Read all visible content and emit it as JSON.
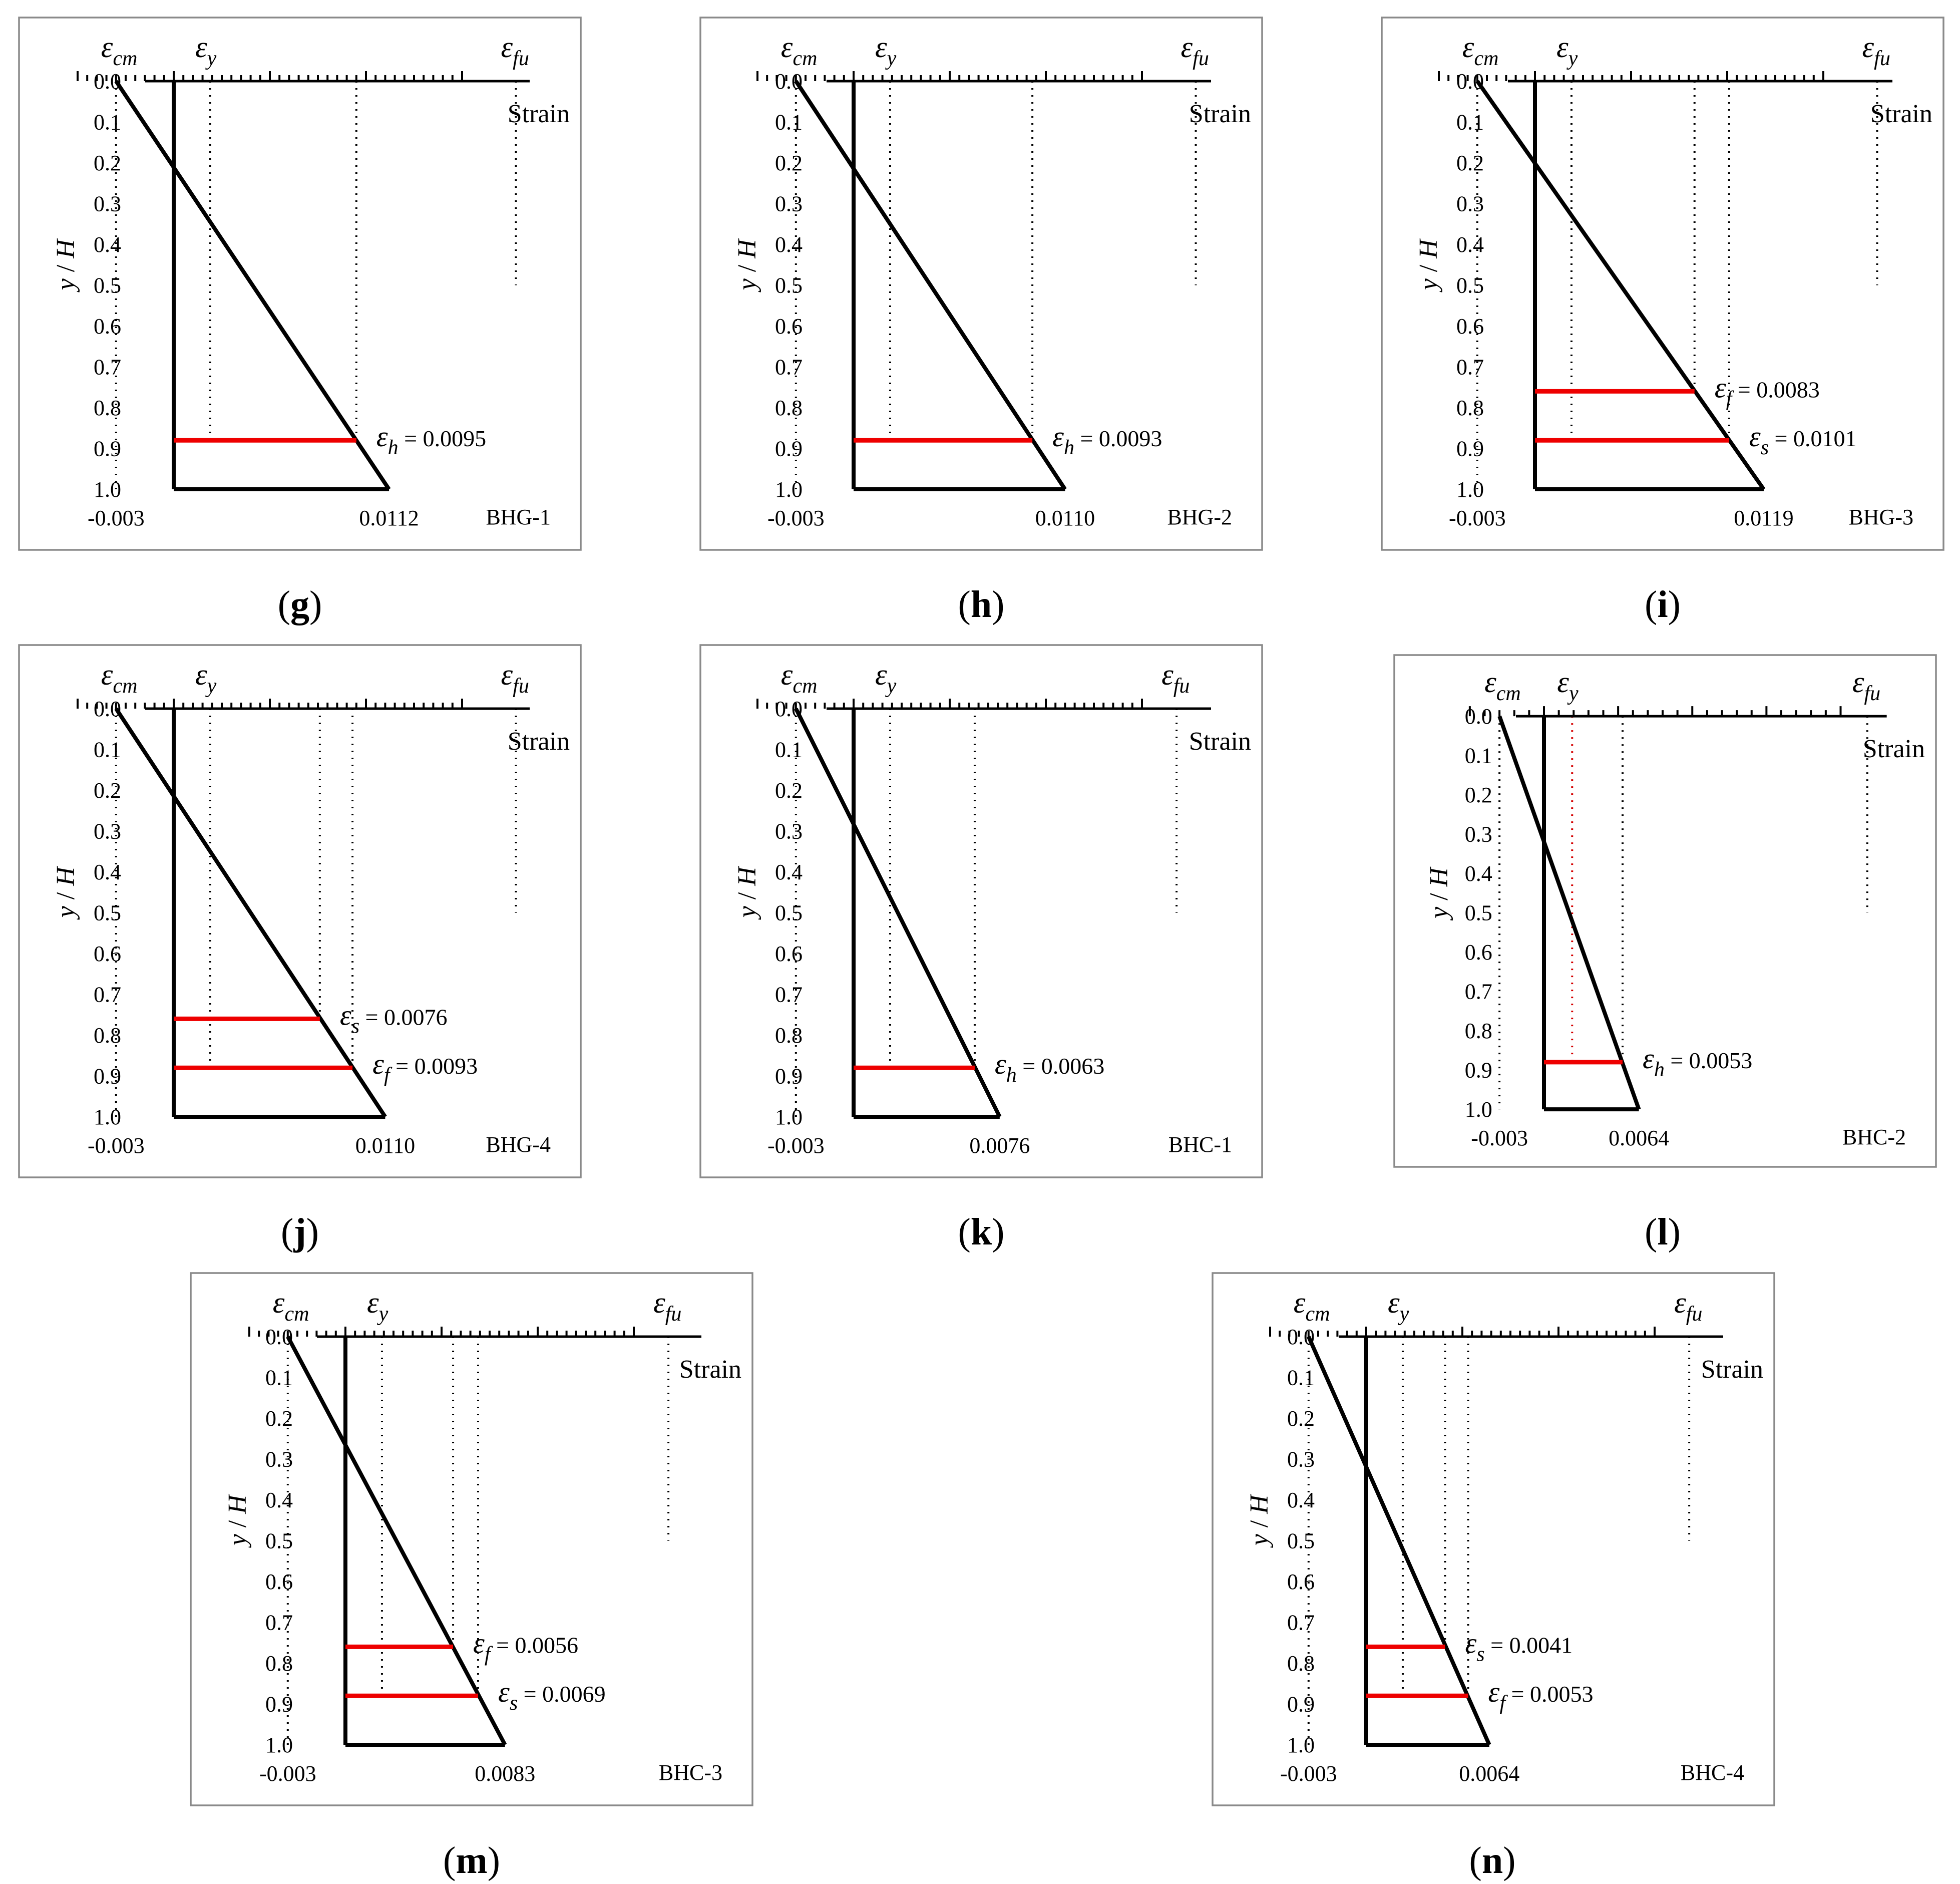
{
  "figure": {
    "colors": {
      "frame": "#8a8a8a",
      "profile": "#000000",
      "highlight": "#ee0000"
    },
    "y_label_main": "y",
    "y_label_sep": " / ",
    "y_label_var": "H",
    "x_label": "Strain",
    "y_ticks": [
      "0.0",
      "0.1",
      "0.2",
      "0.3",
      "0.4",
      "0.5",
      "0.6",
      "0.7",
      "0.8",
      "0.9",
      "1.0"
    ]
  },
  "chart_data": [
    {
      "type": "line",
      "id": "g",
      "specimen": "BHG-1",
      "caption": "g",
      "ylim": [
        0,
        1
      ],
      "xlim": [
        -0.005,
        0.015
      ],
      "profile": [
        {
          "strain": -0.003,
          "y": 0.0
        },
        {
          "strain": 0.0112,
          "y": 1.0
        }
      ],
      "reference_lines": [
        {
          "strain": -0.003,
          "y_to": 1.0,
          "style": "dotted"
        },
        {
          "strain": 0.0019,
          "y_to": 0.88,
          "style": "dotted"
        },
        {
          "strain": 0.0095,
          "y_to": 0.88,
          "style": "dotted"
        },
        {
          "strain": 0.0178,
          "y_to": 0.5,
          "style": "dotted"
        }
      ],
      "highlights": [
        {
          "y": 0.88,
          "strain": 0.0095,
          "symbol": "ε",
          "sub": "h",
          "text": " = 0.0095"
        }
      ],
      "bottom_labels": [
        {
          "strain": -0.003,
          "text": "-0.003"
        },
        {
          "strain": 0.0112,
          "text": "0.0112"
        }
      ],
      "top_symbols": [
        {
          "strain": -0.003,
          "symbol": "ε",
          "sub": "cm"
        },
        {
          "strain": 0.0019,
          "symbol": "ε",
          "sub": "y"
        },
        {
          "strain": 0.0178,
          "symbol": "ε",
          "sub": "fu"
        }
      ]
    },
    {
      "type": "line",
      "id": "h",
      "specimen": "BHG-2",
      "caption": "h",
      "ylim": [
        0,
        1
      ],
      "xlim": [
        -0.005,
        0.015
      ],
      "profile": [
        {
          "strain": -0.003,
          "y": 0.0
        },
        {
          "strain": 0.011,
          "y": 1.0
        }
      ],
      "reference_lines": [
        {
          "strain": -0.003,
          "y_to": 1.0,
          "style": "dotted"
        },
        {
          "strain": 0.0019,
          "y_to": 0.88,
          "style": "dotted"
        },
        {
          "strain": 0.0093,
          "y_to": 0.88,
          "style": "dotted"
        },
        {
          "strain": 0.0178,
          "y_to": 0.5,
          "style": "dotted"
        }
      ],
      "highlights": [
        {
          "y": 0.88,
          "strain": 0.0093,
          "symbol": "ε",
          "sub": "h",
          "text": " = 0.0093"
        }
      ],
      "bottom_labels": [
        {
          "strain": -0.003,
          "text": "-0.003"
        },
        {
          "strain": 0.011,
          "text": "0.0110"
        }
      ],
      "top_symbols": [
        {
          "strain": -0.003,
          "symbol": "ε",
          "sub": "cm"
        },
        {
          "strain": 0.0019,
          "symbol": "ε",
          "sub": "y"
        },
        {
          "strain": 0.0178,
          "symbol": "ε",
          "sub": "fu"
        }
      ]
    },
    {
      "type": "line",
      "id": "i",
      "specimen": "BHG-3",
      "caption": "i",
      "ylim": [
        0,
        1
      ],
      "xlim": [
        -0.005,
        0.015
      ],
      "profile": [
        {
          "strain": -0.003,
          "y": 0.0
        },
        {
          "strain": 0.0119,
          "y": 1.0
        }
      ],
      "reference_lines": [
        {
          "strain": -0.003,
          "y_to": 1.0,
          "style": "dotted"
        },
        {
          "strain": 0.0019,
          "y_to": 0.88,
          "style": "dotted"
        },
        {
          "strain": 0.0083,
          "y_to": 0.76,
          "style": "dotted"
        },
        {
          "strain": 0.0101,
          "y_to": 0.88,
          "style": "dotted"
        },
        {
          "strain": 0.0178,
          "y_to": 0.5,
          "style": "dotted"
        }
      ],
      "highlights": [
        {
          "y": 0.76,
          "strain": 0.0083,
          "symbol": "ε",
          "sub": "f",
          "text": " = 0.0083"
        },
        {
          "y": 0.88,
          "strain": 0.0101,
          "symbol": "ε",
          "sub": "s",
          "text": " = 0.0101"
        }
      ],
      "bottom_labels": [
        {
          "strain": -0.003,
          "text": "-0.003"
        },
        {
          "strain": 0.0119,
          "text": "0.0119"
        }
      ],
      "top_symbols": [
        {
          "strain": -0.003,
          "symbol": "ε",
          "sub": "cm"
        },
        {
          "strain": 0.0019,
          "symbol": "ε",
          "sub": "y"
        },
        {
          "strain": 0.0178,
          "symbol": "ε",
          "sub": "fu"
        }
      ]
    },
    {
      "type": "line",
      "id": "j",
      "specimen": "BHG-4",
      "caption": "j",
      "ylim": [
        0,
        1
      ],
      "xlim": [
        -0.005,
        0.015
      ],
      "profile": [
        {
          "strain": -0.003,
          "y": 0.0
        },
        {
          "strain": 0.011,
          "y": 1.0
        }
      ],
      "reference_lines": [
        {
          "strain": -0.003,
          "y_to": 1.0,
          "style": "dotted"
        },
        {
          "strain": 0.0019,
          "y_to": 0.88,
          "style": "dotted"
        },
        {
          "strain": 0.0076,
          "y_to": 0.76,
          "style": "dotted"
        },
        {
          "strain": 0.0093,
          "y_to": 0.88,
          "style": "dotted"
        },
        {
          "strain": 0.0178,
          "y_to": 0.5,
          "style": "dotted"
        }
      ],
      "highlights": [
        {
          "y": 0.76,
          "strain": 0.0076,
          "symbol": "ε",
          "sub": "s",
          "text": " = 0.0076"
        },
        {
          "y": 0.88,
          "strain": 0.0093,
          "symbol": "ε",
          "sub": "f",
          "text": " = 0.0093"
        }
      ],
      "bottom_labels": [
        {
          "strain": -0.003,
          "text": "-0.003"
        },
        {
          "strain": 0.011,
          "text": "0.0110"
        }
      ],
      "top_symbols": [
        {
          "strain": -0.003,
          "symbol": "ε",
          "sub": "cm"
        },
        {
          "strain": 0.0019,
          "symbol": "ε",
          "sub": "y"
        },
        {
          "strain": 0.0178,
          "symbol": "ε",
          "sub": "fu"
        }
      ]
    },
    {
      "type": "line",
      "id": "k",
      "specimen": "BHC-1",
      "caption": "k",
      "ylim": [
        0,
        1
      ],
      "xlim": [
        -0.005,
        0.015
      ],
      "profile": [
        {
          "strain": -0.003,
          "y": 0.0
        },
        {
          "strain": 0.0076,
          "y": 1.0
        }
      ],
      "reference_lines": [
        {
          "strain": -0.003,
          "y_to": 1.0,
          "style": "dotted"
        },
        {
          "strain": 0.0019,
          "y_to": 0.88,
          "style": "dotted"
        },
        {
          "strain": 0.0063,
          "y_to": 0.88,
          "style": "dotted"
        },
        {
          "strain": 0.0168,
          "y_to": 0.5,
          "style": "dotted"
        }
      ],
      "highlights": [
        {
          "y": 0.88,
          "strain": 0.0063,
          "symbol": "ε",
          "sub": "h",
          "text": " = 0.0063"
        }
      ],
      "bottom_labels": [
        {
          "strain": -0.003,
          "text": "-0.003"
        },
        {
          "strain": 0.0076,
          "text": "0.0076"
        }
      ],
      "top_symbols": [
        {
          "strain": -0.003,
          "symbol": "ε",
          "sub": "cm"
        },
        {
          "strain": 0.0019,
          "symbol": "ε",
          "sub": "y"
        },
        {
          "strain": 0.0168,
          "symbol": "ε",
          "sub": "fu"
        }
      ]
    },
    {
      "type": "line",
      "id": "l",
      "specimen": "BHC-2",
      "caption": "l",
      "ylim": [
        0,
        1
      ],
      "xlim": [
        -0.005,
        0.02
      ],
      "profile": [
        {
          "strain": -0.003,
          "y": 0.0
        },
        {
          "strain": 0.0064,
          "y": 1.0
        }
      ],
      "reference_lines": [
        {
          "strain": -0.003,
          "y_to": 1.0,
          "style": "dotted"
        },
        {
          "strain": 0.0019,
          "y_to": 0.88,
          "style": "dotted-red"
        },
        {
          "strain": 0.0053,
          "y_to": 0.88,
          "style": "dotted"
        },
        {
          "strain": 0.0218,
          "y_to": 0.5,
          "style": "dotted"
        }
      ],
      "highlights": [
        {
          "y": 0.88,
          "strain": 0.0053,
          "symbol": "ε",
          "sub": "h",
          "text": " = 0.0053"
        }
      ],
      "bottom_labels": [
        {
          "strain": -0.003,
          "text": "-0.003"
        },
        {
          "strain": 0.0064,
          "text": "0.0064"
        }
      ],
      "top_symbols": [
        {
          "strain": -0.003,
          "symbol": "ε",
          "sub": "cm"
        },
        {
          "strain": 0.0019,
          "symbol": "ε",
          "sub": "y"
        },
        {
          "strain": 0.0218,
          "symbol": "ε",
          "sub": "fu"
        }
      ]
    },
    {
      "type": "line",
      "id": "m",
      "specimen": "BHC-3",
      "caption": "m",
      "ylim": [
        0,
        1
      ],
      "xlim": [
        -0.005,
        0.015
      ],
      "profile": [
        {
          "strain": -0.003,
          "y": 0.0
        },
        {
          "strain": 0.0083,
          "y": 1.0
        }
      ],
      "reference_lines": [
        {
          "strain": -0.003,
          "y_to": 1.0,
          "style": "dotted"
        },
        {
          "strain": 0.0019,
          "y_to": 0.88,
          "style": "dotted"
        },
        {
          "strain": 0.0056,
          "y_to": 0.76,
          "style": "dotted"
        },
        {
          "strain": 0.0069,
          "y_to": 0.88,
          "style": "dotted"
        },
        {
          "strain": 0.0168,
          "y_to": 0.5,
          "style": "dotted"
        }
      ],
      "highlights": [
        {
          "y": 0.76,
          "strain": 0.0056,
          "symbol": "ε",
          "sub": "f",
          "text": " = 0.0056"
        },
        {
          "y": 0.88,
          "strain": 0.0069,
          "symbol": "ε",
          "sub": "s",
          "text": " = 0.0069"
        }
      ],
      "bottom_labels": [
        {
          "strain": -0.003,
          "text": "-0.003"
        },
        {
          "strain": 0.0083,
          "text": "0.0083"
        }
      ],
      "top_symbols": [
        {
          "strain": -0.003,
          "symbol": "ε",
          "sub": "cm"
        },
        {
          "strain": 0.0019,
          "symbol": "ε",
          "sub": "y"
        },
        {
          "strain": 0.0168,
          "symbol": "ε",
          "sub": "fu"
        }
      ]
    },
    {
      "type": "line",
      "id": "n",
      "specimen": "BHC-4",
      "caption": "n",
      "ylim": [
        0,
        1
      ],
      "xlim": [
        -0.005,
        0.015
      ],
      "profile": [
        {
          "strain": -0.003,
          "y": 0.0
        },
        {
          "strain": 0.0064,
          "y": 1.0
        }
      ],
      "reference_lines": [
        {
          "strain": -0.003,
          "y_to": 1.0,
          "style": "dotted"
        },
        {
          "strain": 0.0019,
          "y_to": 0.88,
          "style": "dotted"
        },
        {
          "strain": 0.0041,
          "y_to": 0.76,
          "style": "dotted"
        },
        {
          "strain": 0.0053,
          "y_to": 0.88,
          "style": "dotted"
        },
        {
          "strain": 0.0168,
          "y_to": 0.5,
          "style": "dotted"
        }
      ],
      "highlights": [
        {
          "y": 0.76,
          "strain": 0.0041,
          "symbol": "ε",
          "sub": "s",
          "text": " = 0.0041"
        },
        {
          "y": 0.88,
          "strain": 0.0053,
          "symbol": "ε",
          "sub": "f",
          "text": " = 0.0053"
        }
      ],
      "bottom_labels": [
        {
          "strain": -0.003,
          "text": "-0.003"
        },
        {
          "strain": 0.0064,
          "text": "0.0064"
        }
      ],
      "top_symbols": [
        {
          "strain": -0.003,
          "symbol": "ε",
          "sub": "cm"
        },
        {
          "strain": 0.0019,
          "symbol": "ε",
          "sub": "y"
        },
        {
          "strain": 0.0168,
          "symbol": "ε",
          "sub": "fu"
        }
      ]
    }
  ]
}
